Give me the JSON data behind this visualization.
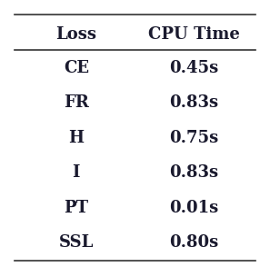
{
  "col_headers": [
    "Loss",
    "CPU Time"
  ],
  "rows": [
    [
      "CE",
      "0.45s"
    ],
    [
      "FR",
      "0.83s"
    ],
    [
      "H",
      "0.75s"
    ],
    [
      "I",
      "0.83s"
    ],
    [
      "PT",
      "0.01s"
    ],
    [
      "SSL",
      "0.80s"
    ]
  ],
  "background_color": "#ffffff",
  "text_color": "#1a1a2e",
  "header_fontsize": 13,
  "cell_fontsize": 13,
  "fig_width": 2.97,
  "fig_height": 2.94,
  "dpi": 100
}
